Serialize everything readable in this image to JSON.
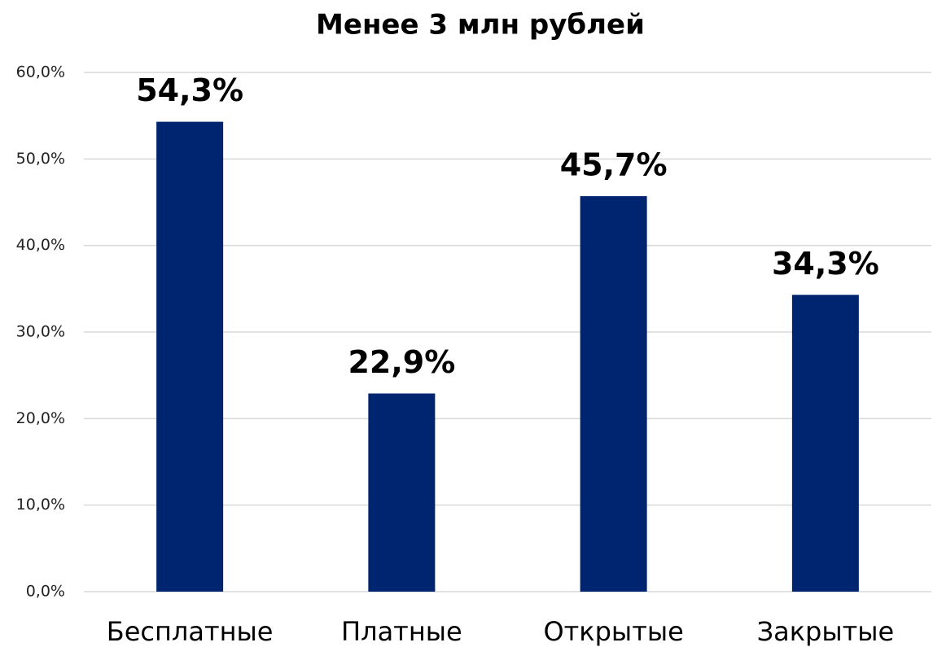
{
  "chart_data": {
    "type": "bar",
    "title": "Менее 3 млн рублей",
    "categories": [
      "Бесплатные",
      "Платные",
      "Открытые",
      "Закрытые"
    ],
    "values": [
      54.3,
      22.9,
      45.7,
      34.3
    ],
    "value_labels": [
      "54,3%",
      "22,9%",
      "45,7%",
      "34,3%"
    ],
    "color": "#002570",
    "ylim": [
      0,
      60
    ],
    "yticks": [
      {
        "value": 0,
        "label": "0,0%"
      },
      {
        "value": 10,
        "label": "10,0%"
      },
      {
        "value": 20,
        "label": "20,0%"
      },
      {
        "value": 30,
        "label": "30,0%"
      },
      {
        "value": 40,
        "label": "40,0%"
      },
      {
        "value": 50,
        "label": "50,0%"
      },
      {
        "value": 60,
        "label": "60,0%"
      }
    ],
    "grid": true
  }
}
